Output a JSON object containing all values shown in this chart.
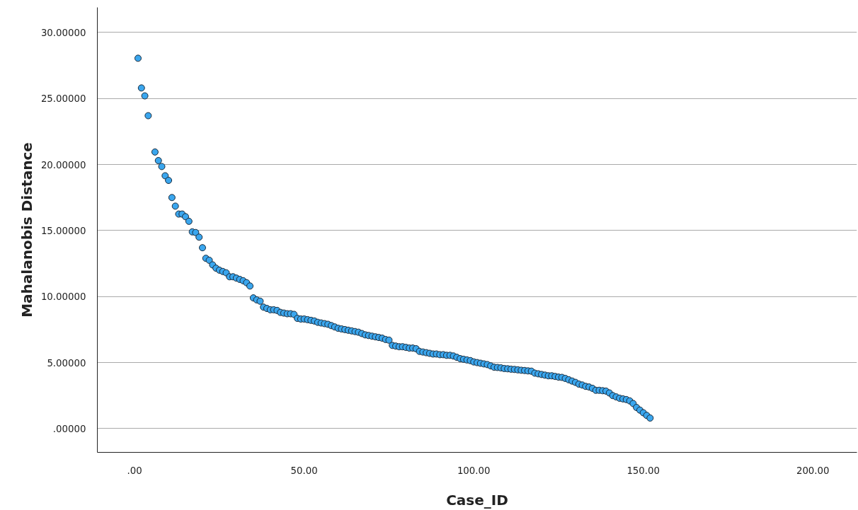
{
  "chart_data": {
    "type": "scatter",
    "xlabel": "Case_ID",
    "ylabel": "Mahalanobis Distance",
    "x": [
      1,
      2,
      3,
      4,
      6,
      7,
      8,
      9,
      10,
      11,
      12,
      13,
      14,
      15,
      16,
      17,
      18,
      19,
      20,
      21,
      22,
      23,
      24,
      25,
      26,
      27,
      28,
      29,
      30,
      31,
      32,
      33,
      34,
      35,
      36,
      37,
      38,
      39,
      40,
      41,
      42,
      43,
      44,
      45,
      46,
      47,
      48,
      49,
      50,
      51,
      52,
      53,
      54,
      55,
      56,
      57,
      58,
      59,
      60,
      61,
      62,
      63,
      64,
      65,
      66,
      67,
      68,
      69,
      70,
      71,
      72,
      73,
      74,
      75,
      76,
      77,
      78,
      79,
      80,
      81,
      82,
      83,
      84,
      85,
      86,
      87,
      88,
      89,
      90,
      91,
      92,
      93,
      94,
      95,
      96,
      97,
      98,
      99,
      100,
      101,
      102,
      103,
      104,
      105,
      106,
      107,
      108,
      109,
      110,
      111,
      112,
      113,
      114,
      115,
      116,
      117,
      118,
      119,
      120,
      121,
      122,
      123,
      124,
      125,
      126,
      127,
      128,
      129,
      130,
      131,
      132,
      133,
      134,
      135,
      136,
      137,
      138,
      139,
      140,
      141,
      142,
      143,
      144,
      145,
      146,
      147,
      148,
      149,
      150,
      151,
      152
    ],
    "series": [
      {
        "color": "#3aa6ee",
        "values": [
          28.05,
          25.8,
          25.2,
          23.7,
          20.95,
          20.3,
          19.85,
          19.15,
          18.8,
          17.5,
          16.85,
          16.25,
          16.25,
          16.05,
          15.7,
          14.9,
          14.85,
          14.5,
          13.7,
          12.9,
          12.75,
          12.4,
          12.15,
          12.0,
          11.9,
          11.8,
          11.5,
          11.5,
          11.4,
          11.3,
          11.2,
          11.05,
          10.8,
          9.9,
          9.75,
          9.65,
          9.2,
          9.1,
          9.0,
          9.0,
          8.95,
          8.8,
          8.75,
          8.7,
          8.7,
          8.65,
          8.35,
          8.3,
          8.3,
          8.25,
          8.2,
          8.15,
          8.05,
          8.0,
          7.95,
          7.9,
          7.8,
          7.7,
          7.6,
          7.55,
          7.5,
          7.45,
          7.4,
          7.35,
          7.3,
          7.2,
          7.1,
          7.05,
          7.0,
          6.95,
          6.9,
          6.85,
          6.75,
          6.7,
          6.3,
          6.25,
          6.2,
          6.2,
          6.15,
          6.1,
          6.1,
          6.05,
          5.85,
          5.8,
          5.75,
          5.7,
          5.65,
          5.65,
          5.6,
          5.6,
          5.55,
          5.55,
          5.5,
          5.4,
          5.3,
          5.25,
          5.2,
          5.15,
          5.05,
          5.0,
          4.95,
          4.9,
          4.85,
          4.75,
          4.65,
          4.63,
          4.6,
          4.55,
          4.53,
          4.5,
          4.48,
          4.45,
          4.42,
          4.4,
          4.37,
          4.35,
          4.2,
          4.15,
          4.1,
          4.05,
          4.0,
          4.0,
          3.95,
          3.9,
          3.88,
          3.8,
          3.7,
          3.6,
          3.5,
          3.37,
          3.3,
          3.2,
          3.15,
          3.05,
          2.9,
          2.9,
          2.87,
          2.84,
          2.7,
          2.5,
          2.4,
          2.3,
          2.25,
          2.2,
          2.1,
          1.9,
          1.6,
          1.4,
          1.2,
          1.0,
          0.8
        ]
      }
    ],
    "xlim": [
      -11,
      213
    ],
    "ylim": [
      -1.8,
      31.9
    ],
    "xticks": [
      {
        "value": 0,
        "label": ".00"
      },
      {
        "value": 50,
        "label": "50.00"
      },
      {
        "value": 100,
        "label": "100.00"
      },
      {
        "value": 150,
        "label": "150.00"
      },
      {
        "value": 200,
        "label": "200.00"
      }
    ],
    "yticks": [
      {
        "value": 0,
        "label": ".00000"
      },
      {
        "value": 5,
        "label": "5.00000"
      },
      {
        "value": 10,
        "label": "10.00000"
      },
      {
        "value": 15,
        "label": "15.00000"
      },
      {
        "value": 20,
        "label": "20.00000"
      },
      {
        "value": 25,
        "label": "25.00000"
      },
      {
        "value": 30,
        "label": "30.00000"
      }
    ],
    "grid": "y",
    "marker": "circle"
  }
}
